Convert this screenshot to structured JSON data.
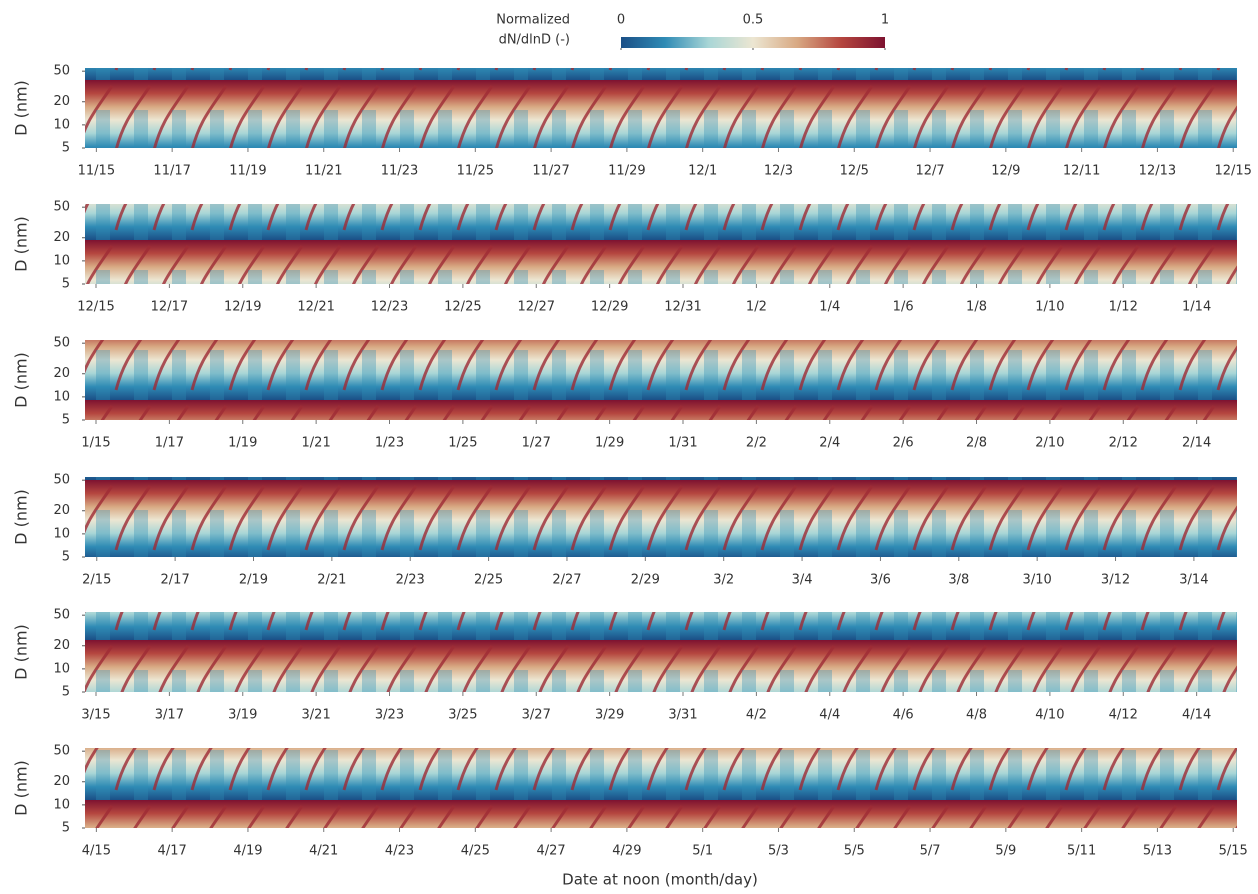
{
  "colorbar": {
    "label_lines": [
      "Normalized",
      "dN/dlnD (-)"
    ],
    "lim": [
      0,
      1
    ],
    "ticks": [
      0,
      0.5,
      1
    ],
    "colors": [
      "#1b4f86",
      "#2f8bb5",
      "#a9d6d6",
      "#ece6d2",
      "#d8a983",
      "#b5463f",
      "#7d1230"
    ]
  },
  "xlabel": "Date at noon (month/day)",
  "chart_data": [
    {
      "type": "heatmap",
      "ylabel": "D (nm)",
      "log_y": true,
      "ylim": [
        5,
        55
      ],
      "yticks": [
        5,
        10,
        20,
        50
      ],
      "xlim": [
        -0.3,
        30.1
      ],
      "xticks": [
        {
          "value": 0,
          "label": "11/15"
        },
        {
          "value": 2,
          "label": "11/17"
        },
        {
          "value": 4,
          "label": "11/19"
        },
        {
          "value": 6,
          "label": "11/21"
        },
        {
          "value": 8,
          "label": "11/23"
        },
        {
          "value": 10,
          "label": "11/25"
        },
        {
          "value": 12,
          "label": "11/27"
        },
        {
          "value": 14,
          "label": "11/29"
        },
        {
          "value": 16,
          "label": "12/1"
        },
        {
          "value": 18,
          "label": "12/3"
        },
        {
          "value": 20,
          "label": "12/5"
        },
        {
          "value": 22,
          "label": "12/7"
        },
        {
          "value": 24,
          "label": "12/9"
        },
        {
          "value": 26,
          "label": "12/11"
        },
        {
          "value": 28,
          "label": "12/13"
        },
        {
          "value": 30,
          "label": "12/15"
        }
      ]
    },
    {
      "type": "heatmap",
      "ylabel": "D (nm)",
      "log_y": true,
      "ylim": [
        5,
        55
      ],
      "yticks": [
        5,
        10,
        20,
        50
      ],
      "xlim": [
        -0.3,
        31.1
      ],
      "xticks": [
        {
          "value": 0,
          "label": "12/15"
        },
        {
          "value": 2,
          "label": "12/17"
        },
        {
          "value": 4,
          "label": "12/19"
        },
        {
          "value": 6,
          "label": "12/21"
        },
        {
          "value": 8,
          "label": "12/23"
        },
        {
          "value": 10,
          "label": "12/25"
        },
        {
          "value": 12,
          "label": "12/27"
        },
        {
          "value": 14,
          "label": "12/29"
        },
        {
          "value": 16,
          "label": "12/31"
        },
        {
          "value": 18,
          "label": "1/2"
        },
        {
          "value": 20,
          "label": "1/4"
        },
        {
          "value": 22,
          "label": "1/6"
        },
        {
          "value": 24,
          "label": "1/8"
        },
        {
          "value": 26,
          "label": "1/10"
        },
        {
          "value": 28,
          "label": "1/12"
        },
        {
          "value": 30,
          "label": "1/14"
        }
      ]
    },
    {
      "type": "heatmap",
      "ylabel": "D (nm)",
      "log_y": true,
      "ylim": [
        5,
        55
      ],
      "yticks": [
        5,
        10,
        20,
        50
      ],
      "xlim": [
        -0.3,
        31.1
      ],
      "xticks": [
        {
          "value": 0,
          "label": "1/15"
        },
        {
          "value": 2,
          "label": "1/17"
        },
        {
          "value": 4,
          "label": "1/19"
        },
        {
          "value": 6,
          "label": "1/21"
        },
        {
          "value": 8,
          "label": "1/23"
        },
        {
          "value": 10,
          "label": "1/25"
        },
        {
          "value": 12,
          "label": "1/27"
        },
        {
          "value": 14,
          "label": "1/29"
        },
        {
          "value": 16,
          "label": "1/31"
        },
        {
          "value": 18,
          "label": "2/2"
        },
        {
          "value": 20,
          "label": "2/4"
        },
        {
          "value": 22,
          "label": "2/6"
        },
        {
          "value": 24,
          "label": "2/8"
        },
        {
          "value": 26,
          "label": "2/10"
        },
        {
          "value": 28,
          "label": "2/12"
        },
        {
          "value": 30,
          "label": "2/14"
        }
      ]
    },
    {
      "type": "heatmap",
      "ylabel": "D (nm)",
      "log_y": true,
      "ylim": [
        5,
        55
      ],
      "yticks": [
        5,
        10,
        20,
        50
      ],
      "xlim": [
        -0.3,
        29.1
      ],
      "xticks": [
        {
          "value": 0,
          "label": "2/15"
        },
        {
          "value": 2,
          "label": "2/17"
        },
        {
          "value": 4,
          "label": "2/19"
        },
        {
          "value": 6,
          "label": "2/21"
        },
        {
          "value": 8,
          "label": "2/23"
        },
        {
          "value": 10,
          "label": "2/25"
        },
        {
          "value": 12,
          "label": "2/27"
        },
        {
          "value": 14,
          "label": "2/29"
        },
        {
          "value": 16,
          "label": "3/2"
        },
        {
          "value": 18,
          "label": "3/4"
        },
        {
          "value": 20,
          "label": "3/6"
        },
        {
          "value": 22,
          "label": "3/8"
        },
        {
          "value": 24,
          "label": "3/10"
        },
        {
          "value": 26,
          "label": "3/12"
        },
        {
          "value": 28,
          "label": "3/14"
        }
      ]
    },
    {
      "type": "heatmap",
      "ylabel": "D (nm)",
      "log_y": true,
      "ylim": [
        5,
        55
      ],
      "yticks": [
        5,
        10,
        20,
        50
      ],
      "xlim": [
        -0.3,
        31.1
      ],
      "xticks": [
        {
          "value": 0,
          "label": "3/15"
        },
        {
          "value": 2,
          "label": "3/17"
        },
        {
          "value": 4,
          "label": "3/19"
        },
        {
          "value": 6,
          "label": "3/21"
        },
        {
          "value": 8,
          "label": "3/23"
        },
        {
          "value": 10,
          "label": "3/25"
        },
        {
          "value": 12,
          "label": "3/27"
        },
        {
          "value": 14,
          "label": "3/29"
        },
        {
          "value": 16,
          "label": "3/31"
        },
        {
          "value": 18,
          "label": "4/2"
        },
        {
          "value": 20,
          "label": "4/4"
        },
        {
          "value": 22,
          "label": "4/6"
        },
        {
          "value": 24,
          "label": "4/8"
        },
        {
          "value": 26,
          "label": "4/10"
        },
        {
          "value": 28,
          "label": "4/12"
        },
        {
          "value": 30,
          "label": "4/14"
        }
      ]
    },
    {
      "type": "heatmap",
      "ylabel": "D (nm)",
      "log_y": true,
      "ylim": [
        5,
        55
      ],
      "yticks": [
        5,
        10,
        20,
        50
      ],
      "xlim": [
        -0.3,
        30.1
      ],
      "xticks": [
        {
          "value": 0,
          "label": "4/15"
        },
        {
          "value": 2,
          "label": "4/17"
        },
        {
          "value": 4,
          "label": "4/19"
        },
        {
          "value": 6,
          "label": "4/21"
        },
        {
          "value": 8,
          "label": "4/23"
        },
        {
          "value": 10,
          "label": "4/25"
        },
        {
          "value": 12,
          "label": "4/27"
        },
        {
          "value": 14,
          "label": "4/29"
        },
        {
          "value": 16,
          "label": "5/1"
        },
        {
          "value": 18,
          "label": "5/3"
        },
        {
          "value": 20,
          "label": "5/5"
        },
        {
          "value": 22,
          "label": "5/7"
        },
        {
          "value": 24,
          "label": "5/9"
        },
        {
          "value": 26,
          "label": "5/11"
        },
        {
          "value": 28,
          "label": "5/13"
        },
        {
          "value": 30,
          "label": "5/15"
        }
      ]
    }
  ]
}
